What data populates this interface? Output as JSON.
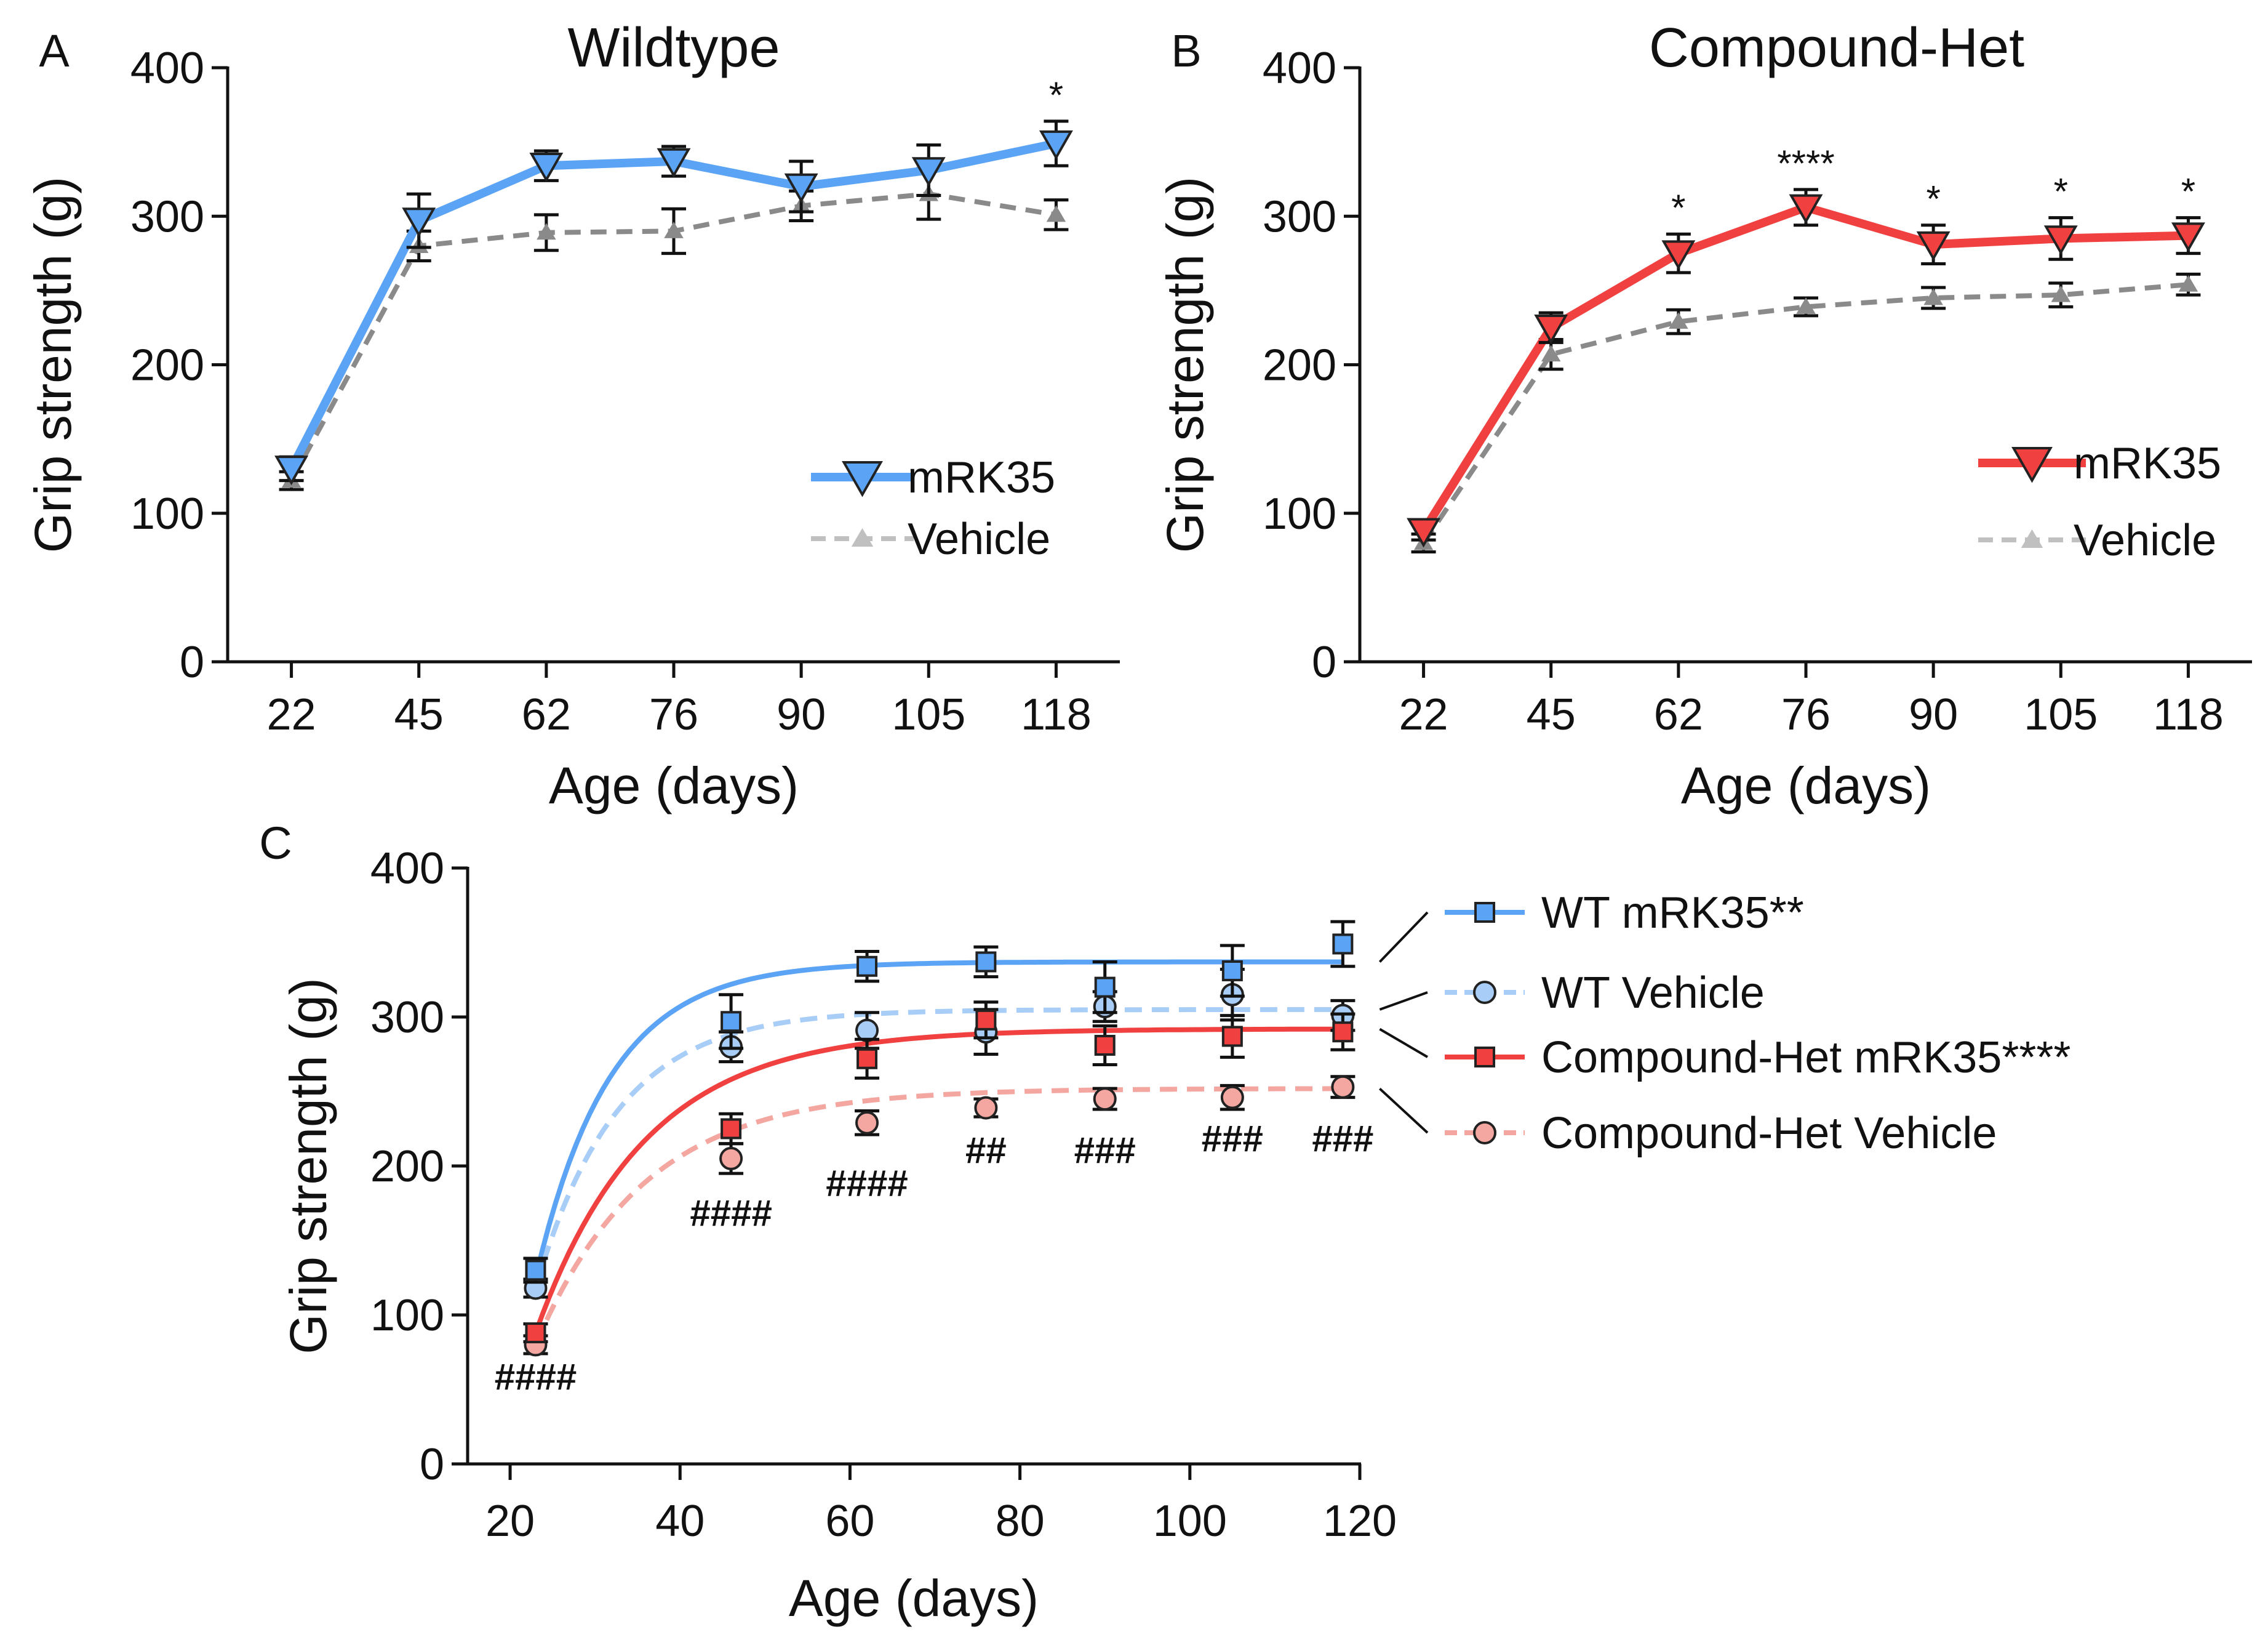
{
  "figure": {
    "panels": {
      "a": {
        "letter": "A",
        "title": "Wildtype"
      },
      "b": {
        "letter": "B",
        "title": "Compound-Het"
      },
      "c": {
        "letter": "C"
      }
    }
  },
  "colors": {
    "wt_mrk35": "#5ba3f5",
    "wt_vehicle_light": "#a8cdf6",
    "het_mrk35": "#f04040",
    "het_vehicle_light": "#f4a6a0",
    "vehicle_gray": "#8a8a8a",
    "vehicle_gray_light": "#c0c0c0",
    "axis": "#111111"
  },
  "chart_data": [
    {
      "id": "panel-a",
      "type": "line",
      "title": "Wildtype",
      "xlabel": "Age (days)",
      "ylabel": "Grip strength (g)",
      "categories": [
        "22",
        "45",
        "62",
        "76",
        "90",
        "105",
        "118"
      ],
      "ylim": [
        0,
        400
      ],
      "yticks": [
        0,
        100,
        200,
        300,
        400
      ],
      "legend_position": "right",
      "series": [
        {
          "name": "mRK35",
          "marker": "triangle-down",
          "line": "solid",
          "color": "#5ba3f5",
          "values": [
            130,
            297,
            334,
            337,
            320,
            331,
            349
          ],
          "errors": [
            8,
            18,
            10,
            10,
            17,
            17,
            15
          ]
        },
        {
          "name": "Vehicle",
          "marker": "triangle-up",
          "line": "dashed",
          "color": "#8a8a8a",
          "values": [
            122,
            280,
            289,
            290,
            307,
            315,
            301
          ],
          "errors": [
            6,
            10,
            12,
            15,
            10,
            17,
            10
          ]
        }
      ],
      "annotations": [
        {
          "category": "118",
          "text": "*"
        }
      ]
    },
    {
      "id": "panel-b",
      "type": "line",
      "title": "Compound-Het",
      "xlabel": "Age (days)",
      "ylabel": "Grip strength (g)",
      "categories": [
        "22",
        "45",
        "62",
        "76",
        "90",
        "105",
        "118"
      ],
      "ylim": [
        0,
        400
      ],
      "yticks": [
        0,
        100,
        200,
        300,
        400
      ],
      "legend_position": "right",
      "series": [
        {
          "name": "mRK35",
          "marker": "triangle-down",
          "line": "solid",
          "color": "#f04040",
          "values": [
            88,
            225,
            275,
            306,
            281,
            285,
            287
          ],
          "errors": [
            6,
            10,
            13,
            12,
            13,
            14,
            12
          ]
        },
        {
          "name": "Vehicle",
          "marker": "triangle-up",
          "line": "dashed",
          "color": "#8a8a8a",
          "values": [
            80,
            207,
            229,
            239,
            245,
            247,
            254
          ],
          "errors": [
            6,
            10,
            8,
            6,
            7,
            8,
            7
          ]
        }
      ],
      "annotations": [
        {
          "category": "62",
          "text": "*"
        },
        {
          "category": "76",
          "text": "****"
        },
        {
          "category": "90",
          "text": "*"
        },
        {
          "category": "105",
          "text": "*"
        },
        {
          "category": "118",
          "text": "*"
        }
      ]
    },
    {
      "id": "panel-c",
      "type": "scatter",
      "xlabel": "Age (days)",
      "ylabel": "Grip strength (g)",
      "xlim": [
        15,
        120
      ],
      "xticks": [
        20,
        40,
        60,
        80,
        100,
        120
      ],
      "ylim": [
        0,
        400
      ],
      "yticks": [
        0,
        100,
        200,
        300,
        400
      ],
      "legend_position": "right",
      "fit": "one-phase association curve per series",
      "series": [
        {
          "name": "WT mRK35**",
          "marker": "square",
          "line": "solid",
          "color": "#5ba3f5",
          "x": [
            23,
            46,
            62,
            76,
            90,
            105,
            118
          ],
          "values": [
            130,
            297,
            334,
            337,
            320,
            331,
            349
          ],
          "errors": [
            8,
            18,
            10,
            10,
            17,
            17,
            15
          ],
          "fit": {
            "y0": 125,
            "plateau": 337,
            "k": 0.115
          }
        },
        {
          "name": "WT Vehicle",
          "marker": "circle",
          "line": "dashed",
          "color": "#a8cdf6",
          "x": [
            23,
            46,
            62,
            76,
            90,
            105,
            118
          ],
          "values": [
            118,
            280,
            291,
            290,
            307,
            315,
            301
          ],
          "errors": [
            6,
            10,
            12,
            15,
            10,
            17,
            10
          ],
          "fit": {
            "y0": 118,
            "plateau": 305,
            "k": 0.105
          }
        },
        {
          "name": "Compound-Het mRK35****",
          "marker": "square",
          "line": "solid",
          "color": "#f04040",
          "x": [
            23,
            46,
            62,
            76,
            90,
            105,
            118
          ],
          "values": [
            88,
            225,
            272,
            298,
            281,
            287,
            290
          ],
          "errors": [
            6,
            10,
            13,
            12,
            13,
            14,
            12
          ],
          "fit": {
            "y0": 88,
            "plateau": 292,
            "k": 0.078
          }
        },
        {
          "name": "Compound-Het Vehicle",
          "marker": "circle",
          "line": "dashed",
          "color": "#f4a6a0",
          "x": [
            23,
            46,
            62,
            76,
            90,
            105,
            118
          ],
          "values": [
            80,
            205,
            229,
            239,
            245,
            246,
            253
          ],
          "errors": [
            6,
            10,
            8,
            6,
            7,
            8,
            7
          ],
          "fit": {
            "y0": 80,
            "plateau": 252,
            "k": 0.078
          }
        }
      ],
      "annotations": [
        {
          "x": 23,
          "y": 50,
          "text": "####"
        },
        {
          "x": 46,
          "y": 160,
          "text": "####"
        },
        {
          "x": 62,
          "y": 180,
          "text": "####"
        },
        {
          "x": 76,
          "y": 202,
          "text": "##"
        },
        {
          "x": 90,
          "y": 202,
          "text": "###"
        },
        {
          "x": 105,
          "y": 210,
          "text": "###"
        },
        {
          "x": 118,
          "y": 210,
          "text": "###"
        }
      ]
    }
  ]
}
